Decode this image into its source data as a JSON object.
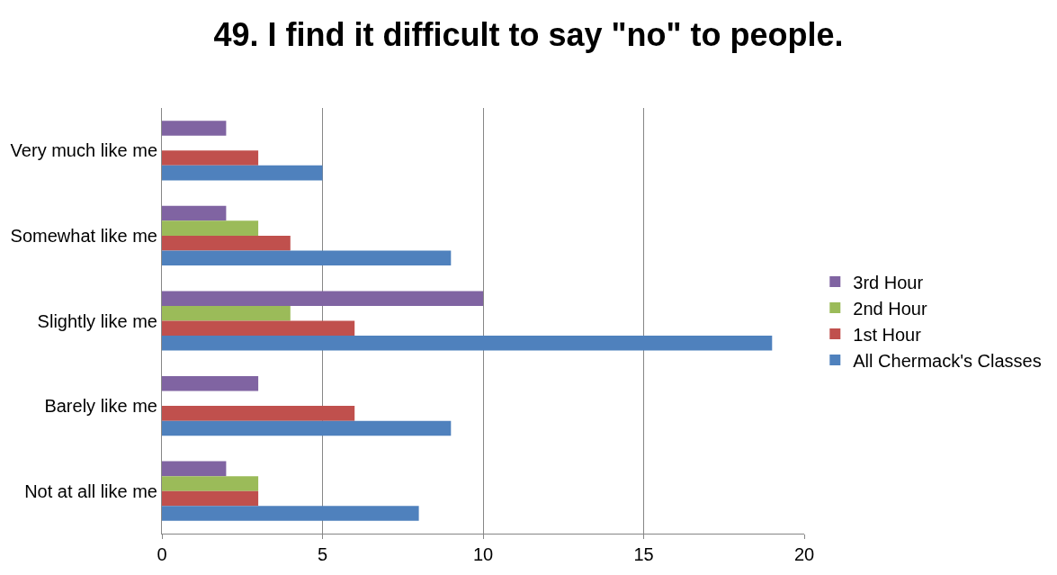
{
  "chart_data": {
    "type": "bar",
    "orientation": "horizontal",
    "title": "49. I find it difficult to say \"no\" to people.",
    "categories": [
      "Very much like me",
      "Somewhat like me",
      "Slightly like me",
      "Barely like me",
      "Not at all like me"
    ],
    "series": [
      {
        "name": "3rd Hour",
        "color": "#8064a2",
        "values": [
          2,
          2,
          10,
          3,
          2
        ]
      },
      {
        "name": "2nd Hour",
        "color": "#9bbb59",
        "values": [
          0,
          3,
          4,
          0,
          3
        ]
      },
      {
        "name": "1st Hour",
        "color": "#c0504d",
        "values": [
          3,
          4,
          6,
          6,
          3
        ]
      },
      {
        "name": "All Chermack's Classes",
        "color": "#4f81bd",
        "values": [
          5,
          9,
          19,
          9,
          8
        ]
      }
    ],
    "xlim": [
      0,
      20
    ],
    "xticks": [
      0,
      5,
      10,
      15,
      20
    ],
    "grid": "x",
    "legend": "right"
  }
}
